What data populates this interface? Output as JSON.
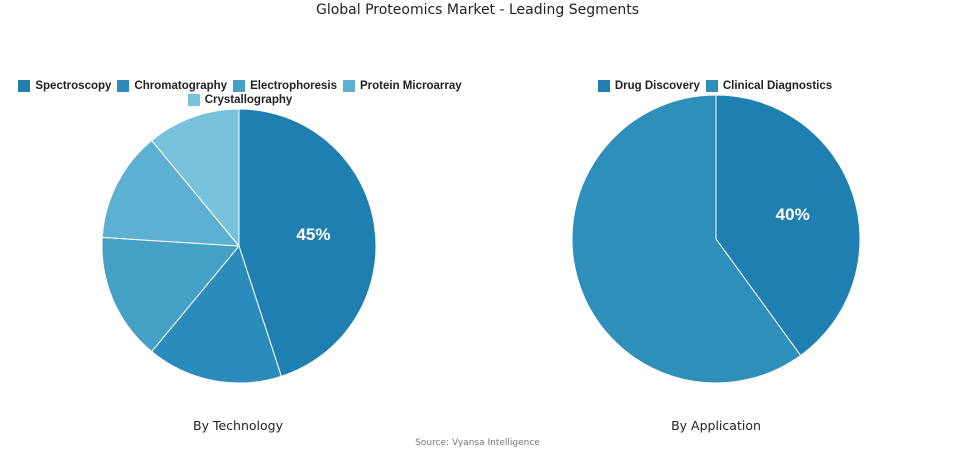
{
  "title": "Global Proteomics Market - Leading Segments",
  "source": "Source: Vyansa Intelligence",
  "chart_data": [
    {
      "type": "pie",
      "subtitle": "By Technology",
      "start_angle_deg": 0,
      "direction": "clockwise",
      "legend_position": "top",
      "slices": [
        {
          "label": "Spectroscopy",
          "value": 45,
          "color": "#1f7fb0",
          "show_label": "45%"
        },
        {
          "label": "Chromatography",
          "value": 16,
          "color": "#2b8cbb",
          "show_label": ""
        },
        {
          "label": "Electrophoresis",
          "value": 15,
          "color": "#45a0c6",
          "show_label": ""
        },
        {
          "label": "Protein Microarray",
          "value": 13,
          "color": "#5db0d1",
          "show_label": ""
        },
        {
          "label": "Crystallography",
          "value": 11,
          "color": "#78c2dc",
          "show_label": ""
        }
      ]
    },
    {
      "type": "pie",
      "subtitle": "By Application",
      "start_angle_deg": 0,
      "direction": "clockwise",
      "legend_position": "top",
      "slices": [
        {
          "label": "Drug Discovery",
          "value": 40,
          "color": "#1f7fb0",
          "show_label": "40%"
        },
        {
          "label": "Clinical Diagnostics",
          "value": 60,
          "color": "#2f8fbb",
          "show_label": ""
        }
      ]
    }
  ]
}
